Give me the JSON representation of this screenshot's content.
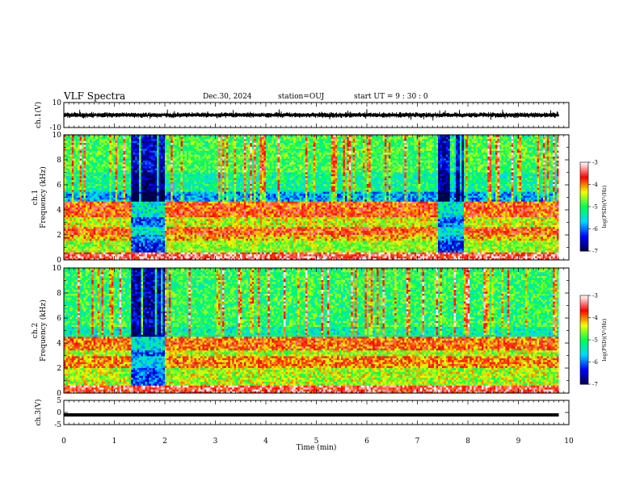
{
  "header": {
    "title": "VLF Spectra",
    "date": "Dec.30, 2024",
    "station": "station=OUJ",
    "start_ut": "start  UT  =   9  : 30 : 0"
  },
  "colors": {
    "waveform": "#000000",
    "colormap": [
      "#00004a",
      "#0000ff",
      "#00d8ff",
      "#00ff50",
      "#f0ff00",
      "#ff0000",
      "#ffffff"
    ]
  },
  "chart_data": [
    {
      "type": "line",
      "name": "ch1-waveform",
      "ylabel": "ch.1(V)",
      "ylim": [
        -10,
        10
      ],
      "yticks": [
        "10",
        "-10"
      ],
      "x_range": [
        0,
        10
      ],
      "baseline": 0,
      "typical_amplitude": 2.5,
      "max_amplitude": 5
    },
    {
      "type": "heatmap",
      "name": "ch1-spectrogram",
      "ylabel_channel": "ch.1",
      "ylabel": "Frequency (kHz)",
      "ylim": [
        0,
        10
      ],
      "yticks": [
        "0",
        "2",
        "4",
        "6",
        "8",
        "10"
      ],
      "x_range": [
        0,
        9.8
      ],
      "colorbar": {
        "label": "log(PSD)(V²/Hz)",
        "range": [
          -7,
          -3
        ],
        "ticks": [
          "-3",
          "-4",
          "-5",
          "-6",
          "-7"
        ]
      },
      "bands_khz": [
        {
          "from": 0.0,
          "to": 0.6,
          "level": -3.4
        },
        {
          "from": 0.6,
          "to": 1.5,
          "level": -4.6
        },
        {
          "from": 1.5,
          "to": 2.0,
          "level": -4.2
        },
        {
          "from": 2.0,
          "to": 2.7,
          "level": -3.8
        },
        {
          "from": 2.7,
          "to": 3.5,
          "level": -4.4
        },
        {
          "from": 3.5,
          "to": 4.7,
          "level": -3.8
        },
        {
          "from": 4.7,
          "to": 5.5,
          "level": -5.8
        },
        {
          "from": 5.5,
          "to": 7.0,
          "level": -5.2
        },
        {
          "from": 7.0,
          "to": 10.0,
          "level": -4.9
        }
      ],
      "quiet_intervals_min": [
        [
          1.35,
          2.0
        ],
        [
          7.4,
          7.9
        ]
      ]
    },
    {
      "type": "heatmap",
      "name": "ch2-spectrogram",
      "ylabel_channel": "ch.2",
      "ylabel": "Frequency (kHz)",
      "ylim": [
        0,
        10
      ],
      "yticks": [
        "0",
        "2",
        "4",
        "6",
        "8",
        "10"
      ],
      "x_range": [
        0,
        9.8
      ],
      "colorbar": {
        "label": "log(PSD)(V²/Hz)",
        "range": [
          -7,
          -3
        ],
        "ticks": [
          "-3",
          "-4",
          "-5",
          "-6",
          "-7"
        ]
      },
      "bands_khz": [
        {
          "from": 0.0,
          "to": 0.7,
          "level": -3.5
        },
        {
          "from": 0.7,
          "to": 2.0,
          "level": -4.5
        },
        {
          "from": 2.0,
          "to": 3.0,
          "level": -4.0
        },
        {
          "from": 3.0,
          "to": 3.5,
          "level": -4.5
        },
        {
          "from": 3.5,
          "to": 4.6,
          "level": -3.9
        },
        {
          "from": 4.6,
          "to": 5.3,
          "level": -5.3
        },
        {
          "from": 5.3,
          "to": 10.0,
          "level": -5.0
        }
      ],
      "quiet_intervals_min": [
        [
          1.35,
          2.0
        ]
      ]
    },
    {
      "type": "line",
      "name": "ch3-waveform",
      "ylabel": "ch.3(V)",
      "ylim": [
        -5,
        5
      ],
      "yticks": [
        "5",
        "0",
        "-5"
      ],
      "x_range": [
        0,
        9.8
      ],
      "level": -1.0,
      "xlabel": "Time  (min)",
      "xlim": [
        0,
        10
      ],
      "xticks": [
        "0",
        "1",
        "2",
        "3",
        "4",
        "5",
        "6",
        "7",
        "8",
        "9",
        "10"
      ]
    }
  ]
}
